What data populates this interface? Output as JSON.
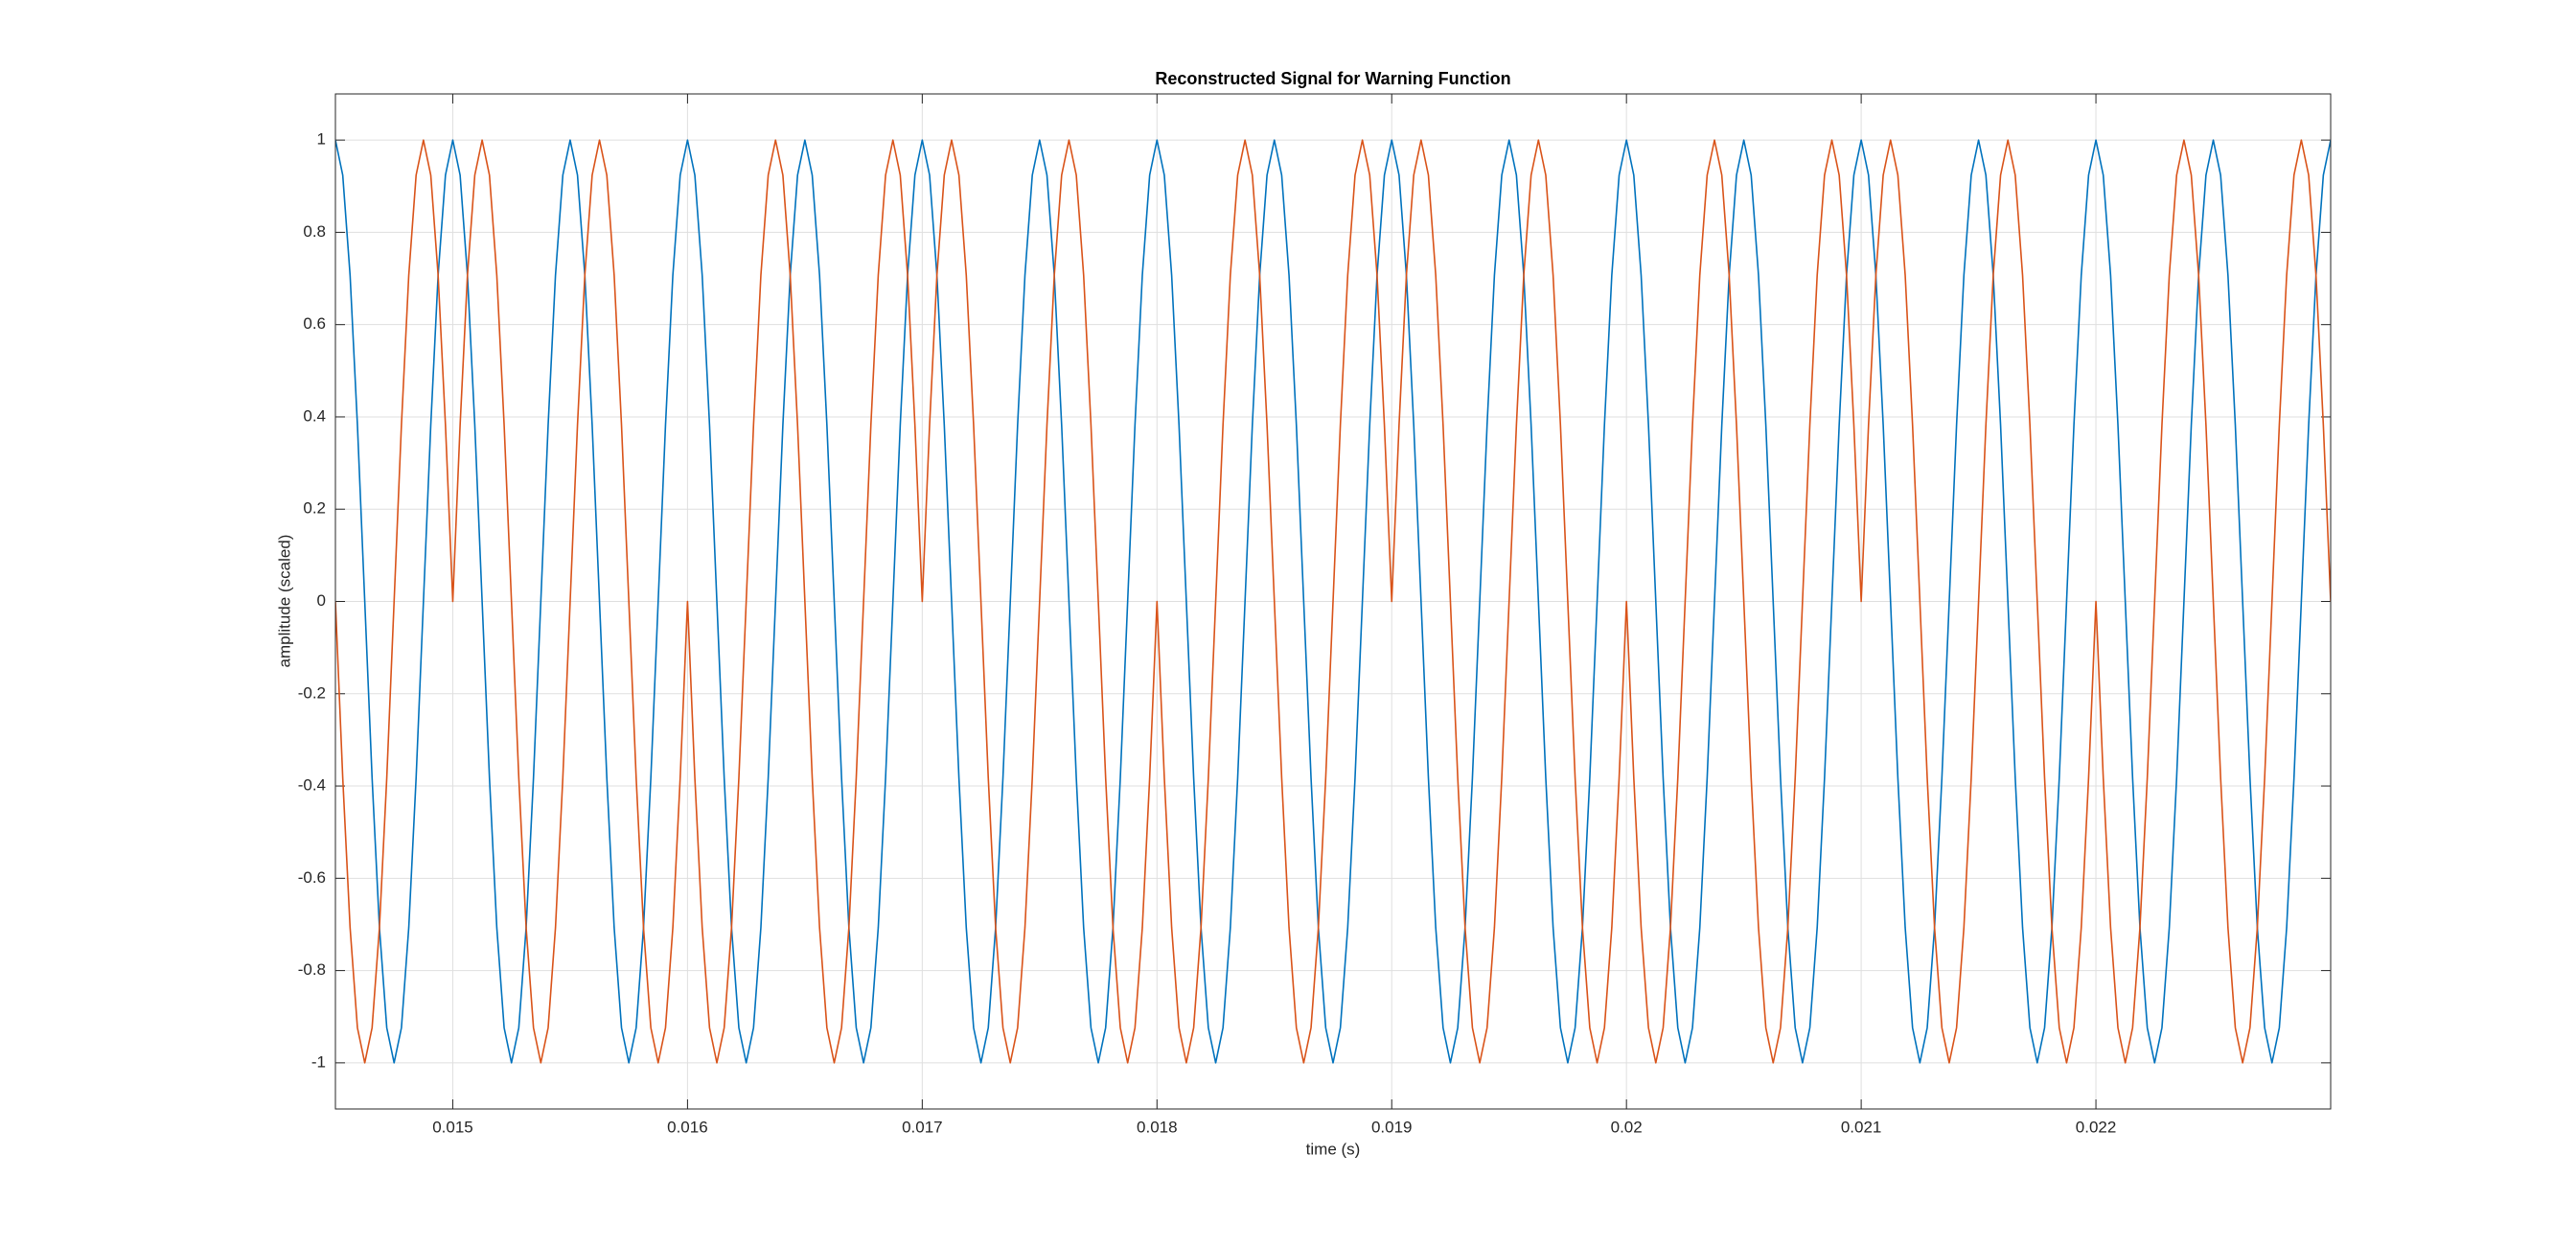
{
  "chart_data": {
    "type": "line",
    "title": "Reconstructed Signal for Warning Function",
    "xlabel": "time (s)",
    "ylabel": "amplitude (scaled)",
    "xlim": [
      0.0145,
      0.023
    ],
    "ylim": [
      -1.1,
      1.1
    ],
    "xticks": [
      0.015,
      0.016,
      0.017,
      0.018,
      0.019,
      0.02,
      0.021,
      0.022
    ],
    "yticks": [
      -1,
      -0.8,
      -0.6,
      -0.4,
      -0.2,
      0,
      0.2,
      0.4,
      0.6,
      0.8,
      1
    ],
    "grid": true,
    "x": [
      0.0145,
      0.01453125,
      0.0145625,
      0.01459375,
      0.014625,
      0.01465625,
      0.0146875,
      0.01471875,
      0.01475,
      0.01478125,
      0.0148125,
      0.01484375,
      0.014875,
      0.01490625,
      0.0149375,
      0.01496875,
      0.015,
      0.01503125,
      0.0150625,
      0.01509375,
      0.015125,
      0.01515625,
      0.0151875,
      0.01521875,
      0.01525,
      0.01528125,
      0.0153125,
      0.01534375,
      0.015375,
      0.01540625,
      0.0154375,
      0.01546875,
      0.0155,
      0.01553125,
      0.0155625,
      0.01559375,
      0.015625,
      0.01565625,
      0.0156875,
      0.01571875,
      0.01575,
      0.01578125,
      0.0158125,
      0.01584375,
      0.015875,
      0.01590625,
      0.0159375,
      0.01596875,
      0.016,
      0.01603125,
      0.0160625,
      0.01609375,
      0.016125,
      0.01615625,
      0.0161875,
      0.01621875,
      0.01625,
      0.01628125,
      0.0163125,
      0.01634375,
      0.016375,
      0.01640625,
      0.0164375,
      0.01646875,
      0.0165,
      0.01653125,
      0.0165625,
      0.01659375,
      0.016625,
      0.01665625,
      0.0166875,
      0.01671875,
      0.01675,
      0.01678125,
      0.0168125,
      0.01684375,
      0.016875,
      0.01690625,
      0.0169375,
      0.01696875,
      0.017,
      0.01703125,
      0.0170625,
      0.01709375,
      0.017125,
      0.01715625,
      0.0171875,
      0.01721875,
      0.01725,
      0.01728125,
      0.0173125,
      0.01734375,
      0.017375,
      0.01740625,
      0.0174375,
      0.01746875,
      0.0175,
      0.01753125,
      0.0175625,
      0.01759375,
      0.017625,
      0.01765625,
      0.0176875,
      0.01771875,
      0.01775,
      0.01778125,
      0.0178125,
      0.01784375,
      0.017875,
      0.01790625,
      0.0179375,
      0.01796875,
      0.018,
      0.01803125,
      0.0180625,
      0.01809375,
      0.018125,
      0.01815625,
      0.0181875,
      0.01821875,
      0.01825,
      0.01828125,
      0.0183125,
      0.01834375,
      0.018375,
      0.01840625,
      0.0184375,
      0.01846875,
      0.0185,
      0.01853125,
      0.0185625,
      0.01859375,
      0.018625,
      0.01865625,
      0.0186875,
      0.01871875,
      0.01875,
      0.01878125,
      0.0188125,
      0.01884375,
      0.018875,
      0.01890625,
      0.0189375,
      0.01896875,
      0.019,
      0.01903125,
      0.0190625,
      0.01909375,
      0.019125,
      0.01915625,
      0.0191875,
      0.01921875,
      0.01925,
      0.01928125,
      0.0193125,
      0.01934375,
      0.019375,
      0.01940625,
      0.0194375,
      0.01946875,
      0.0195,
      0.01953125,
      0.0195625,
      0.01959375,
      0.019625,
      0.01965625,
      0.0196875,
      0.01971875,
      0.01975,
      0.01978125,
      0.0198125,
      0.01984375,
      0.019875,
      0.01990625,
      0.0199375,
      0.01996875,
      0.02,
      0.02003125,
      0.0200625,
      0.02009375,
      0.020125,
      0.02015625,
      0.0201875,
      0.02021875,
      0.02025,
      0.02028125,
      0.0203125,
      0.02034375,
      0.020375,
      0.02040625,
      0.0204375,
      0.02046875,
      0.0205,
      0.02053125,
      0.0205625,
      0.02059375,
      0.020625,
      0.02065625,
      0.0206875,
      0.02071875,
      0.02075,
      0.02078125,
      0.0208125,
      0.02084375,
      0.020875,
      0.02090625,
      0.0209375,
      0.02096875,
      0.021,
      0.02103125,
      0.0210625,
      0.02109375,
      0.021125,
      0.02115625,
      0.0211875,
      0.02121875,
      0.02125,
      0.02128125,
      0.0213125,
      0.02134375,
      0.021375,
      0.02140625,
      0.0214375,
      0.02146875,
      0.0215,
      0.02153125,
      0.0215625,
      0.02159375,
      0.021625,
      0.02165625,
      0.0216875,
      0.02171875,
      0.02175,
      0.02178125,
      0.0218125,
      0.02184375,
      0.021875,
      0.02190625,
      0.0219375,
      0.02196875,
      0.022,
      0.02203125,
      0.0220625,
      0.02209375,
      0.022125,
      0.02215625,
      0.0221875,
      0.02221875,
      0.02225,
      0.02228125,
      0.0223125,
      0.02234375,
      0.022375,
      0.02240625,
      0.0224375,
      0.02246875,
      0.0225,
      0.02253125,
      0.0225625,
      0.02259375,
      0.022625,
      0.02265625,
      0.0226875,
      0.02271875,
      0.02275,
      0.02278125,
      0.0228125,
      0.02284375,
      0.022875,
      0.02290625,
      0.0229375,
      0.02296875,
      0.023
    ],
    "series": [
      {
        "color": "#0072BD",
        "values": [
          1,
          0.9239,
          0.7071,
          0.3827,
          0,
          -0.3827,
          -0.7071,
          -0.9239,
          -1,
          -0.9239,
          -0.7071,
          -0.3827,
          0,
          0.3827,
          0.7071,
          0.9239,
          1,
          0.9239,
          0.7071,
          0.3827,
          0,
          -0.3827,
          -0.7071,
          -0.9239,
          -1,
          -0.9239,
          -0.7071,
          -0.3827,
          0,
          0.3827,
          0.7071,
          0.9239,
          1,
          0.9239,
          0.7071,
          0.3827,
          0,
          -0.3827,
          -0.7071,
          -0.9239,
          -1,
          -0.9239,
          -0.7071,
          -0.3827,
          0,
          0.3827,
          0.7071,
          0.9239,
          1,
          0.9239,
          0.7071,
          0.3827,
          0,
          -0.3827,
          -0.7071,
          -0.9239,
          -1,
          -0.9239,
          -0.7071,
          -0.3827,
          0,
          0.3827,
          0.7071,
          0.9239,
          1,
          0.9239,
          0.7071,
          0.3827,
          0,
          -0.3827,
          -0.7071,
          -0.9239,
          -1,
          -0.9239,
          -0.7071,
          -0.3827,
          0,
          0.3827,
          0.7071,
          0.9239,
          1,
          0.9239,
          0.7071,
          0.3827,
          0,
          -0.3827,
          -0.7071,
          -0.9239,
          -1,
          -0.9239,
          -0.7071,
          -0.3827,
          0,
          0.3827,
          0.7071,
          0.9239,
          1,
          0.9239,
          0.7071,
          0.3827,
          0,
          -0.3827,
          -0.7071,
          -0.9239,
          -1,
          -0.9239,
          -0.7071,
          -0.3827,
          0,
          0.3827,
          0.7071,
          0.9239,
          1,
          0.9239,
          0.7071,
          0.3827,
          0,
          -0.3827,
          -0.7071,
          -0.9239,
          -1,
          -0.9239,
          -0.7071,
          -0.3827,
          0,
          0.3827,
          0.7071,
          0.9239,
          1,
          0.9239,
          0.7071,
          0.3827,
          0,
          -0.3827,
          -0.7071,
          -0.9239,
          -1,
          -0.9239,
          -0.7071,
          -0.3827,
          0,
          0.3827,
          0.7071,
          0.9239,
          1,
          0.9239,
          0.7071,
          0.3827,
          0,
          -0.3827,
          -0.7071,
          -0.9239,
          -1,
          -0.9239,
          -0.7071,
          -0.3827,
          0,
          0.3827,
          0.7071,
          0.9239,
          1,
          0.9239,
          0.7071,
          0.3827,
          0,
          -0.3827,
          -0.7071,
          -0.9239,
          -1,
          -0.9239,
          -0.7071,
          -0.3827,
          0,
          0.3827,
          0.7071,
          0.9239,
          1,
          0.9239,
          0.7071,
          0.3827,
          0,
          -0.3827,
          -0.7071,
          -0.9239,
          -1,
          -0.9239,
          -0.7071,
          -0.3827,
          0,
          0.3827,
          0.7071,
          0.9239,
          1,
          0.9239,
          0.7071,
          0.3827,
          0,
          -0.3827,
          -0.7071,
          -0.9239,
          -1,
          -0.9239,
          -0.7071,
          -0.3827,
          0,
          0.3827,
          0.7071,
          0.9239,
          1,
          0.9239,
          0.7071,
          0.3827,
          0,
          -0.3827,
          -0.7071,
          -0.9239,
          -1,
          -0.9239,
          -0.7071,
          -0.3827,
          0,
          0.3827,
          0.7071,
          0.9239,
          1,
          0.9239,
          0.7071,
          0.3827,
          0,
          -0.3827,
          -0.7071,
          -0.9239,
          -1,
          -0.9239,
          -0.7071,
          -0.3827,
          0,
          0.3827,
          0.7071,
          0.9239,
          1,
          0.9239,
          0.7071,
          0.3827,
          0,
          -0.3827,
          -0.7071,
          -0.9239,
          -1,
          -0.9239,
          -0.7071,
          -0.3827,
          0,
          0.3827,
          0.7071,
          0.9239,
          1,
          0.9239,
          0.7071,
          0.3827,
          0,
          -0.3827,
          -0.7071,
          -0.9239,
          -1,
          -0.9239,
          -0.7071,
          -0.3827,
          0,
          0.3827,
          0.7071,
          0.9239,
          1
        ]
      },
      {
        "color": "#D95319",
        "values": [
          0,
          -0.3827,
          -0.7071,
          -0.9239,
          -1,
          -0.9239,
          -0.7071,
          -0.3827,
          0,
          0.3827,
          0.7071,
          0.9239,
          1,
          0.9239,
          0.7071,
          0.3827,
          0,
          0.3827,
          0.7071,
          0.9239,
          1,
          0.9239,
          0.7071,
          0.3827,
          0,
          -0.3827,
          -0.7071,
          -0.9239,
          -1,
          -0.9239,
          -0.7071,
          -0.3827,
          0,
          0.3827,
          0.7071,
          0.9239,
          1,
          0.9239,
          0.7071,
          0.3827,
          0,
          -0.3827,
          -0.7071,
          -0.9239,
          -1,
          -0.9239,
          -0.7071,
          -0.3827,
          0,
          -0.3827,
          -0.7071,
          -0.9239,
          -1,
          -0.9239,
          -0.7071,
          -0.3827,
          0,
          0.3827,
          0.7071,
          0.9239,
          1,
          0.9239,
          0.7071,
          0.3827,
          0,
          -0.3827,
          -0.7071,
          -0.9239,
          -1,
          -0.9239,
          -0.7071,
          -0.3827,
          0,
          0.3827,
          0.7071,
          0.9239,
          1,
          0.9239,
          0.7071,
          0.3827,
          0,
          0.3827,
          0.7071,
          0.9239,
          1,
          0.9239,
          0.7071,
          0.3827,
          0,
          -0.3827,
          -0.7071,
          -0.9239,
          -1,
          -0.9239,
          -0.7071,
          -0.3827,
          0,
          0.3827,
          0.7071,
          0.9239,
          1,
          0.9239,
          0.7071,
          0.3827,
          0,
          -0.3827,
          -0.7071,
          -0.9239,
          -1,
          -0.9239,
          -0.7071,
          -0.3827,
          0,
          -0.3827,
          -0.7071,
          -0.9239,
          -1,
          -0.9239,
          -0.7071,
          -0.3827,
          0,
          0.3827,
          0.7071,
          0.9239,
          1,
          0.9239,
          0.7071,
          0.3827,
          0,
          -0.3827,
          -0.7071,
          -0.9239,
          -1,
          -0.9239,
          -0.7071,
          -0.3827,
          0,
          0.3827,
          0.7071,
          0.9239,
          1,
          0.9239,
          0.7071,
          0.3827,
          0,
          0.3827,
          0.7071,
          0.9239,
          1,
          0.9239,
          0.7071,
          0.3827,
          0,
          -0.3827,
          -0.7071,
          -0.9239,
          -1,
          -0.9239,
          -0.7071,
          -0.3827,
          0,
          0.3827,
          0.7071,
          0.9239,
          1,
          0.9239,
          0.7071,
          0.3827,
          0,
          -0.3827,
          -0.7071,
          -0.9239,
          -1,
          -0.9239,
          -0.7071,
          -0.3827,
          0,
          -0.3827,
          -0.7071,
          -0.9239,
          -1,
          -0.9239,
          -0.7071,
          -0.3827,
          0,
          0.3827,
          0.7071,
          0.9239,
          1,
          0.9239,
          0.7071,
          0.3827,
          0,
          -0.3827,
          -0.7071,
          -0.9239,
          -1,
          -0.9239,
          -0.7071,
          -0.3827,
          0,
          0.3827,
          0.7071,
          0.9239,
          1,
          0.9239,
          0.7071,
          0.3827,
          0,
          0.3827,
          0.7071,
          0.9239,
          1,
          0.9239,
          0.7071,
          0.3827,
          0,
          -0.3827,
          -0.7071,
          -0.9239,
          -1,
          -0.9239,
          -0.7071,
          -0.3827,
          0,
          0.3827,
          0.7071,
          0.9239,
          1,
          0.9239,
          0.7071,
          0.3827,
          0,
          -0.3827,
          -0.7071,
          -0.9239,
          -1,
          -0.9239,
          -0.7071,
          -0.3827,
          0,
          -0.3827,
          -0.7071,
          -0.9239,
          -1,
          -0.9239,
          -0.7071,
          -0.3827,
          0,
          0.3827,
          0.7071,
          0.9239,
          1,
          0.9239,
          0.7071,
          0.3827,
          0,
          -0.3827,
          -0.7071,
          -0.9239,
          -1,
          -0.9239,
          -0.7071,
          -0.3827,
          0,
          0.3827,
          0.7071,
          0.9239,
          1,
          0.9239,
          0.7071,
          0.3827,
          0
        ]
      }
    ]
  }
}
